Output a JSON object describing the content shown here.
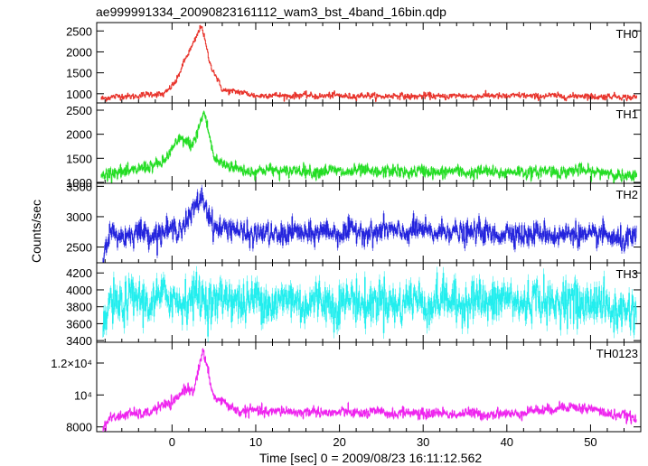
{
  "title": "ae999991334_20090823161112_wam3_bst_4band_16bin.qdp",
  "xlabel": "Time [sec] 0 = 2009/08/23 16:11:12.562",
  "ylabel": "Counts/sec",
  "chart_data": [
    {
      "type": "line",
      "label": "TH0",
      "color": "#e8322a",
      "xlim": [
        -9,
        56
      ],
      "ylim": [
        780,
        2700
      ],
      "yticks": [
        "1000",
        "1500",
        "2000",
        "2500"
      ],
      "ytick_values": [
        1000,
        1500,
        2000,
        2500
      ],
      "base": 930,
      "noise": 35,
      "bumps": [
        [
          0.8,
          250,
          1.6
        ],
        [
          3.7,
          1650,
          0.9
        ],
        [
          2.4,
          500,
          1.0
        ]
      ],
      "series_points": [
        [
          -8.5,
          900
        ],
        [
          -4,
          960
        ],
        [
          -1,
          1000
        ],
        [
          0.5,
          1300
        ],
        [
          1.5,
          1800
        ],
        [
          2.5,
          2200
        ],
        [
          3.5,
          2650
        ],
        [
          4.5,
          1700
        ],
        [
          6,
          1100
        ],
        [
          10,
          960
        ],
        [
          20,
          950
        ],
        [
          30,
          940
        ],
        [
          40,
          950
        ],
        [
          50,
          940
        ],
        [
          55.5,
          920
        ]
      ]
    },
    {
      "type": "line",
      "label": "TH1",
      "color": "#22dd22",
      "xlim": [
        -9,
        56
      ],
      "ylim": [
        980,
        2650
      ],
      "yticks": [
        "1000",
        "1500",
        "2000",
        "2500"
      ],
      "ytick_values": [
        1000,
        1500,
        2000,
        2500
      ],
      "base": 1220,
      "noise": 60,
      "bumps": [
        [
          -0.5,
          200,
          2.0
        ],
        [
          1.4,
          600,
          0.8
        ],
        [
          3.8,
          1150,
          0.8
        ]
      ],
      "series_points": [
        [
          -8.5,
          1150
        ],
        [
          -3,
          1300
        ],
        [
          -1,
          1450
        ],
        [
          1,
          1900
        ],
        [
          2.5,
          1800
        ],
        [
          3.8,
          2450
        ],
        [
          5,
          1500
        ],
        [
          8,
          1250
        ],
        [
          20,
          1230
        ],
        [
          30,
          1220
        ],
        [
          40,
          1210
        ],
        [
          50,
          1240
        ],
        [
          55.5,
          1100
        ]
      ]
    },
    {
      "type": "line",
      "label": "TH2",
      "color": "#2222dd",
      "xlim": [
        -9,
        56
      ],
      "ylim": [
        2240,
        3550
      ],
      "yticks": [
        "2500",
        "3000",
        "3500"
      ],
      "ytick_values": [
        2500,
        3000,
        3500
      ],
      "base": 2720,
      "noise": 90,
      "bumps": [
        [
          1.5,
          150,
          1.5
        ],
        [
          3.5,
          550,
          0.7
        ]
      ],
      "series_points": [
        [
          -8.3,
          2300
        ],
        [
          -7.5,
          2700
        ],
        [
          0,
          2750
        ],
        [
          1.5,
          2900
        ],
        [
          3.5,
          3300
        ],
        [
          5,
          2850
        ],
        [
          10,
          2700
        ],
        [
          20,
          2750
        ],
        [
          30,
          2760
        ],
        [
          40,
          2720
        ],
        [
          50,
          2700
        ],
        [
          55.5,
          2600
        ]
      ]
    },
    {
      "type": "line",
      "label": "TH3",
      "color": "#22eeee",
      "xlim": [
        -9,
        56
      ],
      "ylim": [
        3380,
        4320
      ],
      "yticks": [
        "3400",
        "3600",
        "3800",
        "4000",
        "4200"
      ],
      "ytick_values": [
        3400,
        3600,
        3800,
        4000,
        4200
      ],
      "base": 3860,
      "noise": 120,
      "bumps": [],
      "series_points": [
        [
          -8.3,
          3420
        ],
        [
          -7.5,
          3850
        ],
        [
          0,
          3900
        ],
        [
          10,
          3870
        ],
        [
          20,
          3850
        ],
        [
          30,
          3860
        ],
        [
          40,
          3870
        ],
        [
          50,
          3850
        ],
        [
          55.5,
          3700
        ]
      ]
    },
    {
      "type": "line",
      "label": "TH0123",
      "color": "#ee22ee",
      "xlim": [
        -9,
        56
      ],
      "ylim": [
        7700,
        13300
      ],
      "yticks": [
        "8000",
        "10⁴",
        "1.2×10⁴"
      ],
      "ytick_values": [
        8000,
        10000,
        12000
      ],
      "base": 8850,
      "noise": 150,
      "bumps": [
        [
          0.5,
          700,
          1.8
        ],
        [
          1.8,
          900,
          0.7
        ],
        [
          3.7,
          3700,
          0.8
        ]
      ],
      "series_points": [
        [
          -8.3,
          7800
        ],
        [
          -7.5,
          8600
        ],
        [
          -3,
          8900
        ],
        [
          0,
          9500
        ],
        [
          1.5,
          10400
        ],
        [
          2.5,
          10200
        ],
        [
          3.7,
          12800
        ],
        [
          5,
          9800
        ],
        [
          8,
          9000
        ],
        [
          20,
          8900
        ],
        [
          30,
          8850
        ],
        [
          40,
          8800
        ],
        [
          48,
          9300
        ],
        [
          55.5,
          8500
        ]
      ]
    }
  ],
  "xticks": [
    "0",
    "10",
    "20",
    "30",
    "40",
    "50"
  ],
  "xtick_values": [
    0,
    10,
    20,
    30,
    40,
    50
  ]
}
